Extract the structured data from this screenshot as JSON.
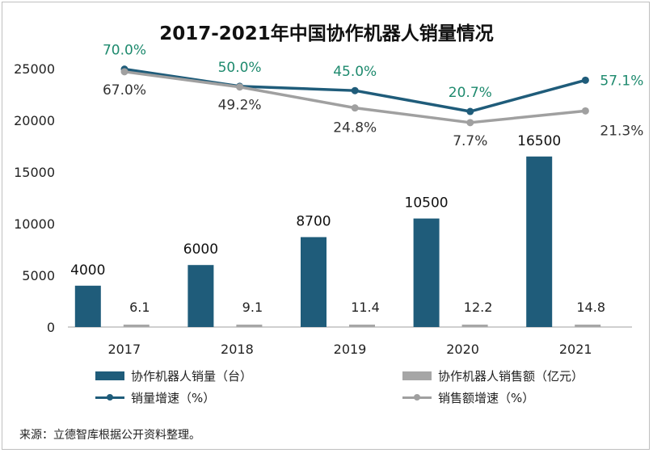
{
  "chart_data": {
    "type": "bar+line",
    "title": "2017-2021年中国协作机器人销量情况",
    "categories": [
      "2017",
      "2018",
      "2019",
      "2020",
      "2021"
    ],
    "ylim": [
      0,
      25000
    ],
    "yticks": [
      "0",
      "5000",
      "10000",
      "15000",
      "20000",
      "25000"
    ],
    "series": [
      {
        "name": "协作机器人销量（台）",
        "kind": "bar",
        "values": [
          4000,
          6000,
          8700,
          10500,
          16500
        ],
        "labels": [
          "4000",
          "6000",
          "8700",
          "10500",
          "16500"
        ],
        "color": "#1f5c7a"
      },
      {
        "name": "协作机器人销售额（亿元）",
        "kind": "bar",
        "values": [
          6.1,
          9.1,
          11.4,
          12.2,
          14.8
        ],
        "labels": [
          "6.1",
          "9.1",
          "11.4",
          "12.2",
          "14.8"
        ],
        "color": "#a6a6a6"
      },
      {
        "name": "销量增速（%）",
        "kind": "line",
        "values": [
          70.0,
          50.0,
          45.0,
          20.7,
          57.1
        ],
        "labels": [
          "70.0%",
          "50.0%",
          "45.0%",
          "20.7%",
          "57.1%"
        ],
        "color": "#1f5c7a",
        "label_color": "#1e8a6e"
      },
      {
        "name": "销售额增速（%）",
        "kind": "line",
        "values": [
          67.0,
          49.2,
          24.8,
          7.7,
          21.3
        ],
        "labels": [
          "67.0%",
          "49.2%",
          "24.8%",
          "7.7%",
          "21.3%"
        ],
        "color": "#a0a0a0",
        "label_color": "#333333"
      }
    ],
    "grid": false,
    "legend_position": "bottom"
  },
  "source": "来源：立德智库根据公开资料整理。"
}
